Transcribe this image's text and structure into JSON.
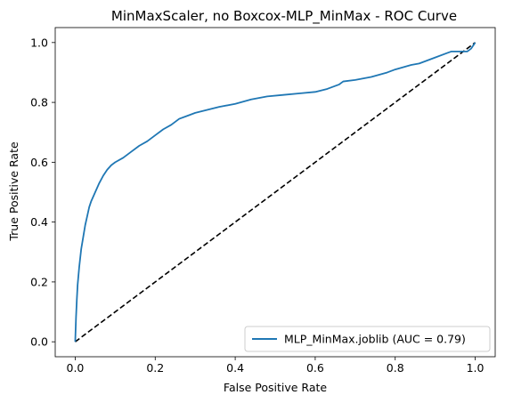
{
  "chart_data": {
    "type": "line",
    "title": "MinMaxScaler, no Boxcox-MLP_MinMax - ROC Curve",
    "xlabel": "False Positive Rate",
    "ylabel": "True Positive Rate",
    "xlim": [
      -0.05,
      1.05
    ],
    "ylim": [
      -0.05,
      1.05
    ],
    "xticks": [
      0.0,
      0.2,
      0.4,
      0.6,
      0.8,
      1.0
    ],
    "yticks": [
      0.0,
      0.2,
      0.4,
      0.6,
      0.8,
      1.0
    ],
    "xtick_labels": [
      "0.0",
      "0.2",
      "0.4",
      "0.6",
      "0.8",
      "1.0"
    ],
    "ytick_labels": [
      "0.0",
      "0.2",
      "0.4",
      "0.6",
      "0.8",
      "1.0"
    ],
    "grid": false,
    "legend_position": "lower-right",
    "series": [
      {
        "name": "MLP_MinMax.joblib (AUC = 0.79)",
        "color": "#1f77b4",
        "style": "solid",
        "x": [
          0.0,
          0.002,
          0.004,
          0.006,
          0.008,
          0.01,
          0.015,
          0.02,
          0.025,
          0.03,
          0.035,
          0.04,
          0.05,
          0.06,
          0.07,
          0.08,
          0.09,
          0.1,
          0.12,
          0.14,
          0.16,
          0.18,
          0.2,
          0.22,
          0.24,
          0.26,
          0.28,
          0.3,
          0.33,
          0.36,
          0.4,
          0.44,
          0.48,
          0.52,
          0.56,
          0.6,
          0.63,
          0.66,
          0.67,
          0.7,
          0.74,
          0.78,
          0.8,
          0.84,
          0.86,
          0.9,
          0.93,
          0.94,
          0.98,
          0.99,
          1.0
        ],
        "y": [
          0.0,
          0.08,
          0.14,
          0.19,
          0.22,
          0.25,
          0.31,
          0.35,
          0.39,
          0.42,
          0.45,
          0.47,
          0.5,
          0.53,
          0.555,
          0.575,
          0.59,
          0.6,
          0.615,
          0.635,
          0.655,
          0.67,
          0.69,
          0.71,
          0.725,
          0.745,
          0.755,
          0.765,
          0.775,
          0.785,
          0.795,
          0.81,
          0.82,
          0.825,
          0.83,
          0.835,
          0.845,
          0.86,
          0.87,
          0.875,
          0.885,
          0.9,
          0.91,
          0.925,
          0.93,
          0.95,
          0.965,
          0.97,
          0.97,
          0.98,
          1.0
        ]
      },
      {
        "name": "",
        "color": "#000000",
        "style": "dashed",
        "x": [
          0.0,
          1.0
        ],
        "y": [
          0.0,
          1.0
        ]
      }
    ]
  }
}
